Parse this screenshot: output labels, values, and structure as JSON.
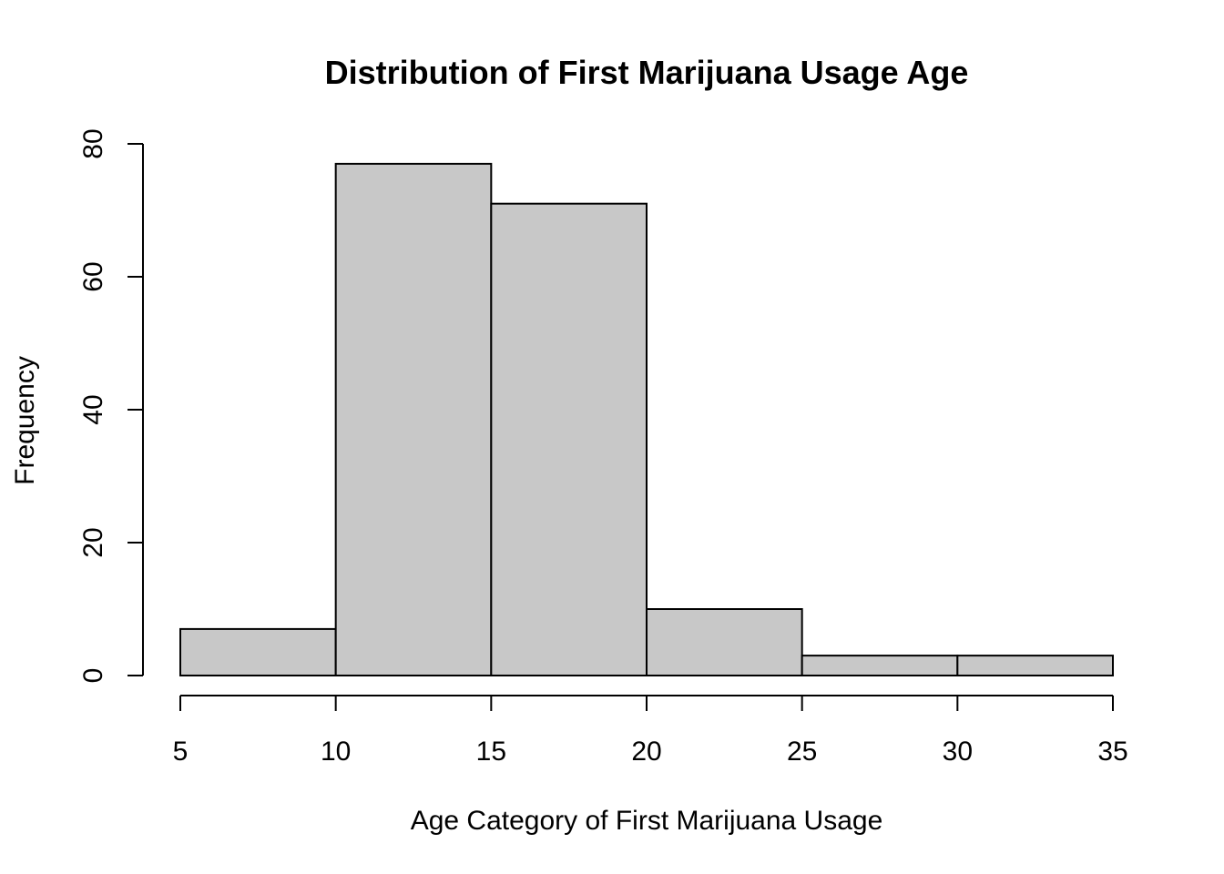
{
  "chart_data": {
    "type": "bar",
    "title": "Distribution of First Marijuana Usage Age",
    "xlabel": "Age Category of First Marijuana Usage",
    "ylabel": "Frequency",
    "bins": [
      {
        "start": 5,
        "end": 10,
        "value": 7
      },
      {
        "start": 10,
        "end": 15,
        "value": 77
      },
      {
        "start": 15,
        "end": 20,
        "value": 71
      },
      {
        "start": 20,
        "end": 25,
        "value": 10
      },
      {
        "start": 25,
        "end": 30,
        "value": 3
      },
      {
        "start": 30,
        "end": 35,
        "value": 3
      }
    ],
    "xticks": [
      5,
      10,
      15,
      20,
      25,
      30,
      35
    ],
    "yticks": [
      0,
      20,
      40,
      60,
      80
    ],
    "xlim": [
      5,
      35
    ],
    "ylim": [
      0,
      80
    ],
    "grid": false,
    "bar_color": "#c8c8c8",
    "edge_color": "#000000"
  }
}
